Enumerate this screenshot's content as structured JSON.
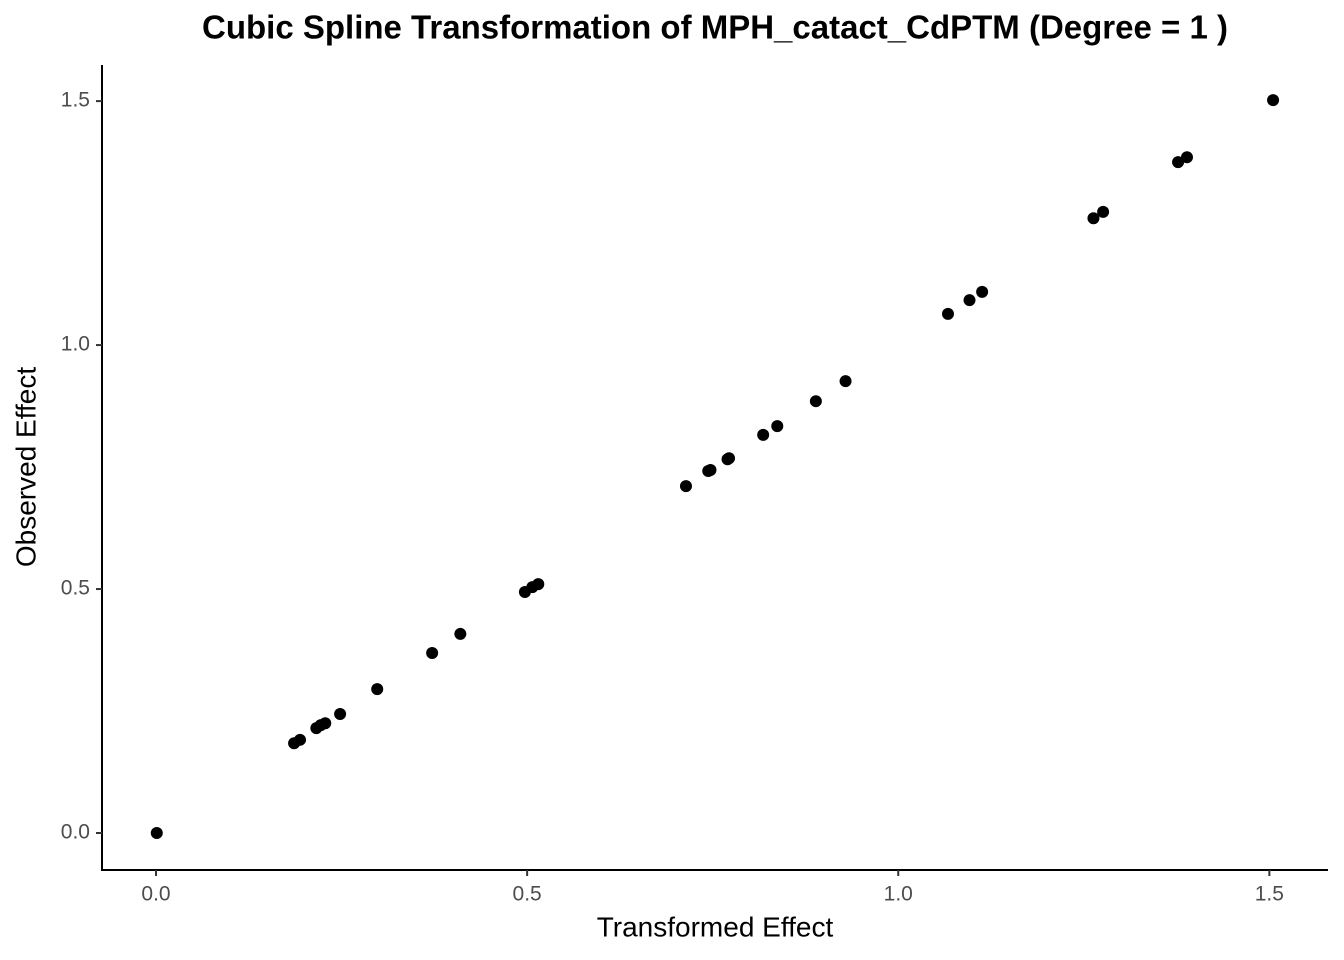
{
  "chart_data": {
    "type": "scatter",
    "title": "Cubic Spline Transformation of MPH_catact_CdPTM (Degree = 1 )",
    "x_label": "Transformed Effect",
    "y_label": "Observed Effect",
    "color": "#000000",
    "grid": false,
    "x": [
      0.001,
      0.186,
      0.194,
      0.216,
      0.222,
      0.228,
      0.248,
      0.298,
      0.372,
      0.41,
      0.497,
      0.507,
      0.515,
      0.714,
      0.744,
      0.747,
      0.77,
      0.772,
      0.818,
      0.837,
      0.889,
      0.929,
      1.067,
      1.096,
      1.113,
      1.263,
      1.276,
      1.377,
      1.389,
      1.505
    ],
    "values": [
      0.0,
      0.184,
      0.191,
      0.215,
      0.221,
      0.225,
      0.244,
      0.295,
      0.369,
      0.408,
      0.494,
      0.504,
      0.51,
      0.711,
      0.742,
      0.744,
      0.766,
      0.768,
      0.816,
      0.834,
      0.885,
      0.926,
      1.064,
      1.092,
      1.109,
      1.26,
      1.273,
      1.375,
      1.385,
      1.502
    ],
    "xlim": [
      -0.0728,
      1.579
    ],
    "ylim": [
      -0.0758,
      1.574
    ],
    "xticks": [
      {
        "value": 0,
        "label": "0.0"
      },
      {
        "value": 0.5,
        "label": "0.5"
      },
      {
        "value": 1,
        "label": "1.0"
      },
      {
        "value": 1.5,
        "label": "1.5"
      }
    ],
    "yticks": [
      {
        "value": 0,
        "label": "0.0"
      },
      {
        "value": 0.5,
        "label": "0.5"
      },
      {
        "value": 1,
        "label": "1.0"
      },
      {
        "value": 1.5,
        "label": "1.5"
      }
    ]
  }
}
